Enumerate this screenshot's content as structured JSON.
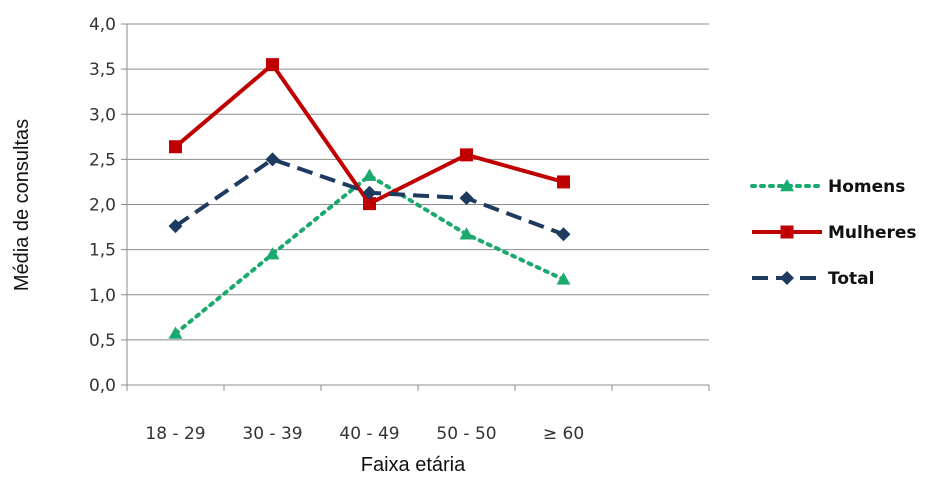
{
  "chart_data": {
    "type": "line",
    "title": "",
    "xlabel": "Faixa etária",
    "ylabel": "Média de consultas",
    "categories": [
      "18 - 29",
      "30 - 39",
      "40 - 49",
      "50 - 50",
      "≥ 60"
    ],
    "ylim": [
      0,
      4
    ],
    "yticks": [
      "0,0",
      "0,5",
      "1,0",
      "1,5",
      "2,0",
      "2,5",
      "3,0",
      "3,5",
      "4,0"
    ],
    "grid": true,
    "legend_position": "right",
    "series": [
      {
        "name": "Homens",
        "values": [
          0.57,
          1.45,
          2.32,
          1.67,
          1.17
        ],
        "color": "#1aaa6e",
        "line": "dotted",
        "marker": "triangle"
      },
      {
        "name": "Mulheres",
        "values": [
          2.64,
          3.55,
          2.01,
          2.55,
          2.25
        ],
        "color": "#c00000",
        "line": "solid",
        "marker": "square"
      },
      {
        "name": "Total",
        "values": [
          1.76,
          2.5,
          2.13,
          2.07,
          1.67
        ],
        "color": "#1f3a5f",
        "line": "dashed",
        "marker": "diamond"
      }
    ]
  }
}
